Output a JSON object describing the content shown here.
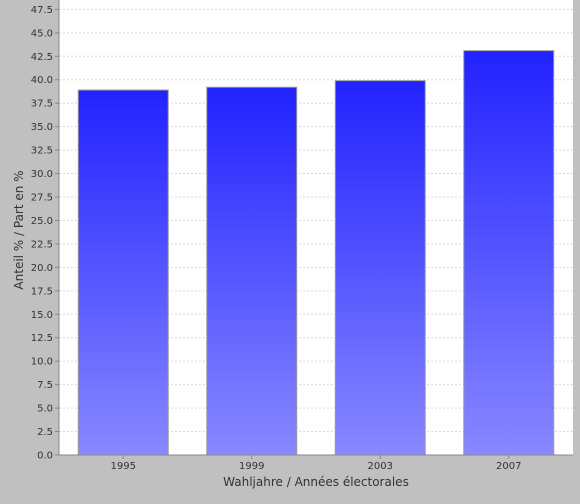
{
  "chart_data": {
    "type": "bar",
    "categories": [
      "1995",
      "1999",
      "2003",
      "2007"
    ],
    "values": [
      38.9,
      39.2,
      39.9,
      43.1
    ],
    "xlabel": "Wahljahre / Années électorales",
    "ylabel": "Anteil % / Part en %",
    "ylim": [
      0,
      48.5
    ],
    "yticks": [
      "0.0",
      "2.5",
      "5.0",
      "7.5",
      "10.0",
      "12.5",
      "15.0",
      "17.5",
      "20.0",
      "22.5",
      "25.0",
      "27.5",
      "30.0",
      "32.5",
      "35.0",
      "37.5",
      "40.0",
      "42.5",
      "45.0",
      "47.5"
    ],
    "grid": true,
    "colors": {
      "bar_top": "#2222ff",
      "bar_bottom": "#8888ff",
      "plot_bg": "#ffffff",
      "page_bg": "#c0c0c0",
      "grid": "#d9d9d9"
    }
  }
}
